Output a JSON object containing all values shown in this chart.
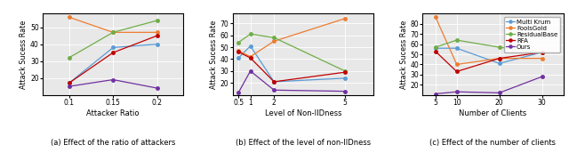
{
  "plot_a": {
    "caption": "(a) Effect of the ratio of attackers",
    "xlabel": "Attacker Ratio",
    "ylabel": "Attack Sucess Rate",
    "xlim": [
      0.07,
      0.23
    ],
    "ylim": [
      10,
      58
    ],
    "xticks": [
      0.1,
      0.15,
      0.2
    ],
    "yticks": [
      20,
      30,
      40,
      50
    ],
    "series": {
      "Multi Krum": {
        "x": [
          0.1,
          0.15,
          0.2
        ],
        "y": [
          17,
          38,
          40
        ]
      },
      "FoolsGold": {
        "x": [
          0.1,
          0.15,
          0.2
        ],
        "y": [
          56,
          47,
          47
        ]
      },
      "ResidualBase": {
        "x": [
          0.1,
          0.15,
          0.2
        ],
        "y": [
          32,
          47,
          54
        ]
      },
      "RFA": {
        "x": [
          0.1,
          0.15,
          0.2
        ],
        "y": [
          17,
          35,
          45
        ]
      },
      "Ours": {
        "x": [
          0.1,
          0.15,
          0.2
        ],
        "y": [
          15,
          19,
          14
        ]
      }
    }
  },
  "plot_b": {
    "caption": "(b) Effect of the level of non-IIDness",
    "xlabel": "Level of Non-IIDness",
    "ylabel": "Attack Sucess Rate",
    "xlim": [
      0.25,
      6.2
    ],
    "ylim": [
      10,
      78
    ],
    "xticks": [
      0.5,
      1,
      2,
      5
    ],
    "yticks": [
      20,
      30,
      40,
      50,
      60,
      70
    ],
    "series": {
      "Multi Krum": {
        "x": [
          0.5,
          1,
          2,
          5
        ],
        "y": [
          41,
          51,
          21,
          24
        ]
      },
      "FoolsGold": {
        "x": [
          0.5,
          1,
          2,
          5
        ],
        "y": [
          47,
          42,
          55,
          74
        ]
      },
      "ResidualBase": {
        "x": [
          0.5,
          1,
          2,
          5
        ],
        "y": [
          54,
          61,
          58,
          30
        ]
      },
      "RFA": {
        "x": [
          0.5,
          1,
          2,
          5
        ],
        "y": [
          46,
          41,
          21,
          29
        ]
      },
      "Ours": {
        "x": [
          0.5,
          1,
          2,
          5
        ],
        "y": [
          12,
          30,
          14,
          13
        ]
      }
    }
  },
  "plot_c": {
    "caption": "(c) Effect of the number of clients",
    "xlabel": "Number of Clients",
    "ylabel": "Attack Sucess Rate",
    "xlim": [
      2,
      35
    ],
    "ylim": [
      10,
      90
    ],
    "xticks": [
      5,
      10,
      20,
      30
    ],
    "yticks": [
      20,
      30,
      40,
      50,
      60,
      70,
      80
    ],
    "series": {
      "Multi Krum": {
        "x": [
          5,
          10,
          20,
          30
        ],
        "y": [
          56,
          56,
          41,
          52
        ]
      },
      "FoolsGold": {
        "x": [
          5,
          10,
          20,
          30
        ],
        "y": [
          87,
          40,
          46,
          46
        ]
      },
      "ResidualBase": {
        "x": [
          5,
          10,
          20,
          30
        ],
        "y": [
          57,
          64,
          57,
          52
        ]
      },
      "RFA": {
        "x": [
          5,
          10,
          20,
          30
        ],
        "y": [
          53,
          33,
          46,
          52
        ]
      },
      "Ours": {
        "x": [
          5,
          10,
          20,
          30
        ],
        "y": [
          11,
          13,
          12,
          28
        ]
      }
    }
  },
  "colors": {
    "Multi Krum": "#5b9bd5",
    "FoolsGold": "#ed7d31",
    "ResidualBase": "#70ad47",
    "RFA": "#c00000",
    "Ours": "#7030a0"
  },
  "legend_order": [
    "Multi Krum",
    "FoolsGold",
    "ResidualBase",
    "RFA",
    "Ours"
  ],
  "ax_facecolor": "#e8e8e8",
  "fig_facecolor": "#ffffff"
}
